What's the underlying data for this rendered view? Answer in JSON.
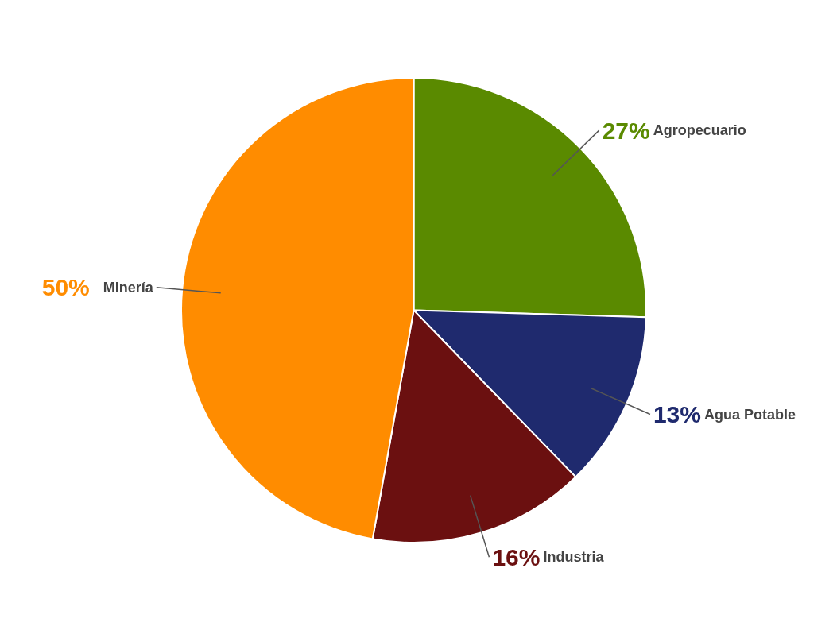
{
  "chart_data": {
    "type": "pie",
    "categories": [
      "Agropecuario",
      "Agua Potable",
      "Industria",
      "Minería"
    ],
    "values": [
      27,
      13,
      16,
      50
    ],
    "value_labels": [
      "27%",
      "13%",
      "16%",
      "50%"
    ],
    "colors": [
      "#5a8a00",
      "#1f2a6e",
      "#6b1010",
      "#ff8c00"
    ]
  }
}
